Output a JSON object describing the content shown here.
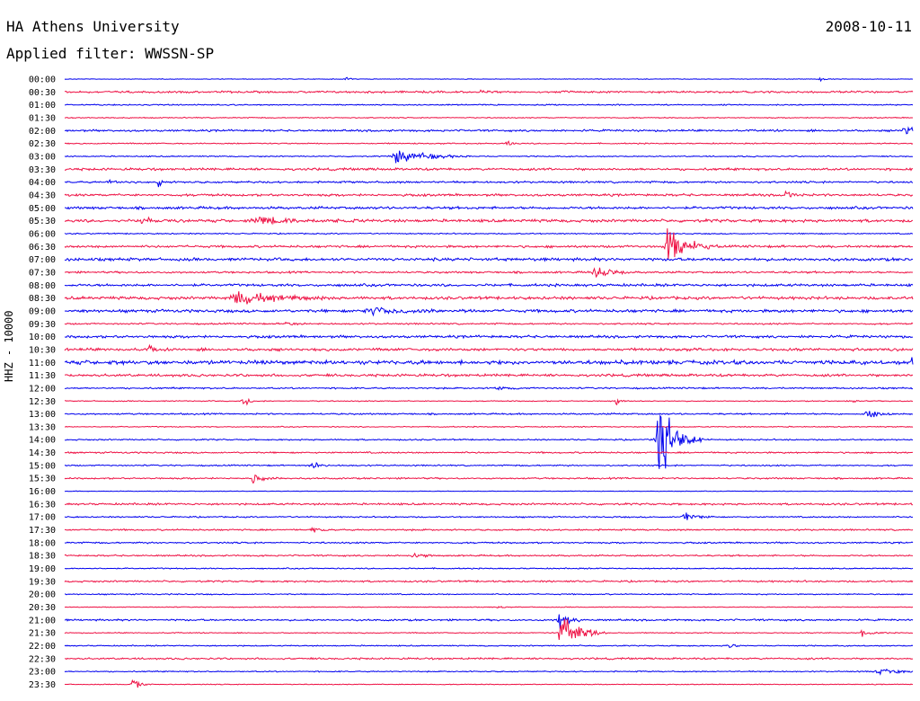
{
  "header": {
    "station": "HA Athens University",
    "date": "2008-10-11",
    "filter": "Applied filter: WWSSN-SP"
  },
  "chart_data": {
    "type": "line",
    "title": "HA Athens University",
    "subtitle": "Applied filter: WWSSN-SP",
    "date": "2008-10-11",
    "ylabel": "HHZ - 10000",
    "series_colors": [
      "#0000ee",
      "#ee1144"
    ],
    "rows": [
      {
        "label": "00:00",
        "noise": 0.3,
        "events": [
          {
            "x": 0.33,
            "amp": 3,
            "w": 0.004
          },
          {
            "x": 0.89,
            "amp": 2,
            "w": 0.004
          }
        ]
      },
      {
        "label": "00:30",
        "noise": 1.0,
        "events": [
          {
            "x": 0.49,
            "amp": 3,
            "w": 0.008
          }
        ]
      },
      {
        "label": "01:00",
        "noise": 0.6,
        "events": []
      },
      {
        "label": "01:30",
        "noise": 0.5,
        "events": []
      },
      {
        "label": "02:00",
        "noise": 1.0,
        "events": [
          {
            "x": 0.99,
            "amp": 3,
            "w": 0.02
          }
        ]
      },
      {
        "label": "02:30",
        "noise": 0.6,
        "events": [
          {
            "x": 0.52,
            "amp": 3,
            "w": 0.005
          }
        ]
      },
      {
        "label": "03:00",
        "noise": 0.6,
        "events": [
          {
            "x": 0.39,
            "amp": 7,
            "w": 0.03
          }
        ]
      },
      {
        "label": "03:30",
        "noise": 1.2,
        "events": []
      },
      {
        "label": "04:00",
        "noise": 1.0,
        "events": [
          {
            "x": 0.05,
            "amp": 3,
            "w": 0.01
          },
          {
            "x": 0.11,
            "amp": 5,
            "w": 0.003
          }
        ]
      },
      {
        "label": "04:30",
        "noise": 1.2,
        "events": [
          {
            "x": 0.85,
            "amp": 3,
            "w": 0.01
          }
        ]
      },
      {
        "label": "05:00",
        "noise": 1.3,
        "events": []
      },
      {
        "label": "05:30",
        "noise": 1.5,
        "events": [
          {
            "x": 0.09,
            "amp": 3,
            "w": 0.01
          },
          {
            "x": 0.23,
            "amp": 3,
            "w": 0.04
          }
        ]
      },
      {
        "label": "06:00",
        "noise": 0.6,
        "events": []
      },
      {
        "label": "06:30",
        "noise": 1.2,
        "events": [
          {
            "x": 0.71,
            "amp": 18,
            "w": 0.02
          }
        ]
      },
      {
        "label": "07:00",
        "noise": 1.5,
        "events": []
      },
      {
        "label": "07:30",
        "noise": 1.0,
        "events": [
          {
            "x": 0.625,
            "amp": 6,
            "w": 0.015
          }
        ]
      },
      {
        "label": "08:00",
        "noise": 1.3,
        "events": []
      },
      {
        "label": "08:30",
        "noise": 1.5,
        "events": [
          {
            "x": 0.2,
            "amp": 6,
            "w": 0.04
          }
        ]
      },
      {
        "label": "09:00",
        "noise": 1.5,
        "events": [
          {
            "x": 0.36,
            "amp": 3,
            "w": 0.04
          }
        ]
      },
      {
        "label": "09:30",
        "noise": 0.8,
        "events": [
          {
            "x": 0.26,
            "amp": 2,
            "w": 0.01
          }
        ]
      },
      {
        "label": "10:00",
        "noise": 1.3,
        "events": []
      },
      {
        "label": "10:30",
        "noise": 1.4,
        "events": [
          {
            "x": 0.1,
            "amp": 3,
            "w": 0.006
          }
        ]
      },
      {
        "label": "11:00",
        "noise": 2.0,
        "events": [
          {
            "x": 0.999,
            "amp": 5,
            "w": 0.003
          }
        ]
      },
      {
        "label": "11:30",
        "noise": 1.3,
        "events": []
      },
      {
        "label": "12:00",
        "noise": 0.8,
        "events": [
          {
            "x": 0.51,
            "amp": 2,
            "w": 0.01
          }
        ]
      },
      {
        "label": "12:30",
        "noise": 0.5,
        "events": [
          {
            "x": 0.21,
            "amp": 6,
            "w": 0.006
          },
          {
            "x": 0.65,
            "amp": 5,
            "w": 0.004
          },
          {
            "x": 0.93,
            "amp": 3,
            "w": 0.004
          }
        ]
      },
      {
        "label": "13:00",
        "noise": 0.8,
        "events": [
          {
            "x": 0.945,
            "amp": 5,
            "w": 0.012
          }
        ]
      },
      {
        "label": "13:30",
        "noise": 0.5,
        "events": []
      },
      {
        "label": "14:00",
        "noise": 0.7,
        "events": [
          {
            "x": 0.7,
            "amp": 38,
            "w": 0.018
          }
        ]
      },
      {
        "label": "14:30",
        "noise": 0.8,
        "events": []
      },
      {
        "label": "15:00",
        "noise": 0.7,
        "events": [
          {
            "x": 0.29,
            "amp": 4,
            "w": 0.008
          }
        ]
      },
      {
        "label": "15:30",
        "noise": 0.8,
        "events": [
          {
            "x": 0.22,
            "amp": 4,
            "w": 0.012
          }
        ]
      },
      {
        "label": "16:00",
        "noise": 0.3,
        "events": []
      },
      {
        "label": "16:30",
        "noise": 1.0,
        "events": []
      },
      {
        "label": "17:00",
        "noise": 0.7,
        "events": [
          {
            "x": 0.73,
            "amp": 4,
            "w": 0.012
          }
        ]
      },
      {
        "label": "17:30",
        "noise": 0.8,
        "events": [
          {
            "x": 0.29,
            "amp": 2,
            "w": 0.01
          }
        ]
      },
      {
        "label": "18:00",
        "noise": 0.8,
        "events": []
      },
      {
        "label": "18:30",
        "noise": 0.8,
        "events": [
          {
            "x": 0.41,
            "amp": 3,
            "w": 0.01
          }
        ]
      },
      {
        "label": "19:00",
        "noise": 0.6,
        "events": []
      },
      {
        "label": "19:30",
        "noise": 0.9,
        "events": []
      },
      {
        "label": "20:00",
        "noise": 0.6,
        "events": []
      },
      {
        "label": "20:30",
        "noise": 0.4,
        "events": [
          {
            "x": 0.51,
            "amp": 2,
            "w": 0.005
          }
        ]
      },
      {
        "label": "21:00",
        "noise": 0.9,
        "events": [
          {
            "x": 0.58,
            "amp": 12,
            "w": 0.01
          }
        ]
      },
      {
        "label": "21:30",
        "noise": 0.5,
        "events": [
          {
            "x": 0.585,
            "amp": 20,
            "w": 0.018
          },
          {
            "x": 0.94,
            "amp": 3,
            "w": 0.01
          }
        ]
      },
      {
        "label": "22:00",
        "noise": 0.6,
        "events": [
          {
            "x": 0.78,
            "amp": 2,
            "w": 0.01
          }
        ]
      },
      {
        "label": "22:30",
        "noise": 0.9,
        "events": []
      },
      {
        "label": "23:00",
        "noise": 0.6,
        "events": [
          {
            "x": 0.96,
            "amp": 2,
            "w": 0.03
          }
        ]
      },
      {
        "label": "23:30",
        "noise": 0.4,
        "events": [
          {
            "x": 0.08,
            "amp": 5,
            "w": 0.008
          }
        ]
      }
    ]
  }
}
